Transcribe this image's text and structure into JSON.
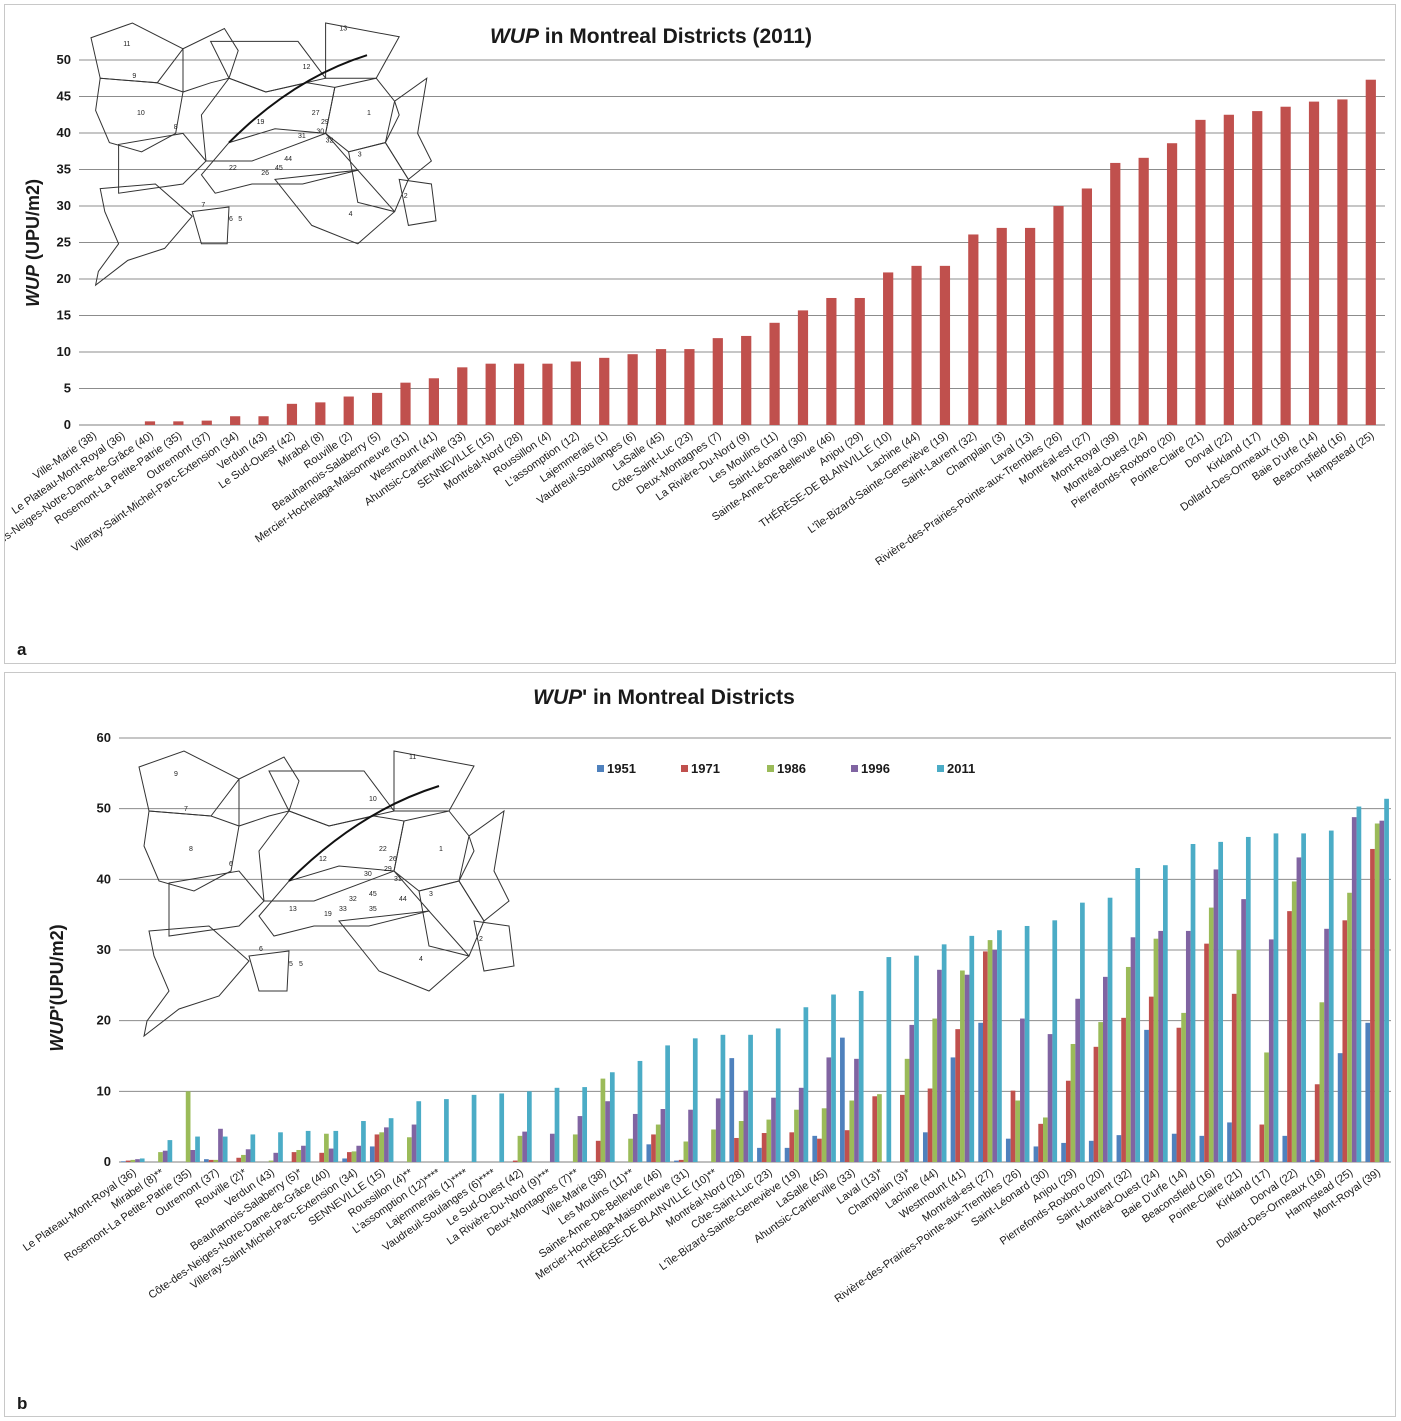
{
  "chart_data": [
    {
      "type": "bar",
      "panel_label": "a",
      "title_italic": "WUP",
      "title_rest": " in Montreal Districts (2011)",
      "ylabel_italic": "WUP",
      "ylabel_rest": " (UPU/m2)",
      "ylim": [
        0,
        50
      ],
      "yticks": [
        0,
        5,
        10,
        15,
        20,
        25,
        30,
        35,
        40,
        45,
        50
      ],
      "grid": true,
      "color": "#c0504d",
      "categories": [
        "Ville-Marie (38)",
        "Le Plateau-Mont-Royal (36)",
        "Côte-des-Neiges-Notre-Dame-de-Grâce (40)",
        "Rosemont-La Petite-Patrie (35)",
        "Outremont (37)",
        "Villeray-Saint-Michel-Parc-Extension (34)",
        "Verdun (43)",
        "Le Sud-Ouest (42)",
        "Mirabel (8)",
        "Rouville (2)",
        "Beauharnois-Salaberry (5)",
        "Mercier-Hochelaga-Maisonneuve (31)",
        "Westmount (41)",
        "Ahuntsic-Cartierville (33)",
        "SENNEVILLE (15)",
        "Montréal-Nord (28)",
        "Roussillon (4)",
        "L'assomption (12)",
        "Lajemmerais (1)",
        "Vaudreuil-Soulanges (6)",
        "LaSalle (45)",
        "Côte-Saint-Luc (23)",
        "Deux-Montagnes (7)",
        "La Rivière-Du-Nord (9)",
        "Les Moulins (11)",
        "Saint-Léonard (30)",
        "Sainte-Anne-De-Bellevue (46)",
        "Anjou (29)",
        "THÉRÈSE-DE BLAINVILLE (10)",
        "Lachine (44)",
        "L'île-Bizard-Sainte-Geneviève (19)",
        "Saint-Laurent (32)",
        "Champlain (3)",
        "Laval (13)",
        "Rivière-des-Prairies-Pointe-aux-Trembles (26)",
        "Montréal-est (27)",
        "Mont-Royal (39)",
        "Montréal-Ouest (24)",
        "Pierrefonds-Roxboro (20)",
        "Pointe-Claire (21)",
        "Dorval (22)",
        "Kirkland (17)",
        "Dollard-Des-Ormeaux (18)",
        "Baie D'urfe (14)",
        "Beaconsfield (16)",
        "Hampstead (25)"
      ],
      "values": [
        0,
        0,
        0.5,
        0.5,
        0.6,
        1.2,
        1.2,
        2.9,
        3.1,
        3.9,
        4.4,
        5.8,
        6.4,
        7.9,
        8.4,
        8.4,
        8.4,
        8.7,
        9.2,
        9.7,
        10.4,
        10.4,
        11.9,
        12.2,
        14.0,
        15.7,
        17.4,
        17.4,
        20.9,
        21.8,
        21.8,
        26.1,
        27.0,
        27.0,
        30.0,
        32.4,
        35.9,
        36.6,
        38.6,
        41.8,
        42.5,
        43.0,
        43.6,
        44.3,
        44.6,
        47.3
      ]
    },
    {
      "type": "bar",
      "panel_label": "b",
      "title_italic": "WUP",
      "title_rest": "' in Montreal Districts",
      "ylabel_italic": "WUP",
      "ylabel_rest": "'(UPU/m2)",
      "ylim": [
        0,
        60
      ],
      "yticks": [
        0,
        10,
        20,
        30,
        40,
        50,
        60
      ],
      "grid": true,
      "legend_position": "top",
      "categories": [
        "Le Plateau-Mont-Royal (36)",
        "Mirabel (8)**",
        "Rosemont-La Petite-Patrie (35)",
        "Outremont (37)",
        "Rouville (2)*",
        "Verdun (43)",
        "Beauharnois-Salaberry (5)*",
        "Côte-des-Neiges-Notre-Dame-de-Grâce (40)",
        "Villeray-Saint-Michel-Parc-Extension (34)",
        "SENNEVILLE (15)",
        "Roussillon (4)**",
        "L'assomption (12)****",
        "Lajemmerais (1)****",
        "Vaudreuil-Soulanges (6)****",
        "Le Sud-Ouest (42)",
        "La Rivière-Du-Nord (9)***",
        "Deux-Montagnes (7)**",
        "Ville-Marie (38)",
        "Les Moulins (11)**",
        "Sainte-Anne-De-Bellevue (46)",
        "Mercier-Hochelaga-Maisonneuve (31)",
        "THÉRÈSE-DE BLAINVILLE (10)**",
        "Montréal-Nord (28)",
        "Côte-Saint-Luc (23)",
        "L'île-Bizard-Sainte-Geneviève (19)",
        "LaSalle (45)",
        "Ahuntsic-Cartierville (33)",
        "Laval (13)*",
        "Champlain (3)*",
        "Lachine (44)",
        "Westmount (41)",
        "Montréal-est (27)",
        "Rivière-des-Prairies-Pointe-aux-Trembles (26)",
        "Saint-Léonard (30)",
        "Anjou (29)",
        "Pierrefonds-Roxboro (20)",
        "Saint-Laurent (32)",
        "Montréal-Ouest (24)",
        "Baie D'urfe (14)",
        "Beaconsfield (16)",
        "Pointe-Claire (21)",
        "Kirkland (17)",
        "Dorval (22)",
        "Dollard-Des-Ormeaux (18)",
        "Hampstead (25)",
        "Mont-Royal (39)"
      ],
      "series": [
        {
          "name": "1951",
          "color": "#4f81bd",
          "values": [
            0.1,
            0,
            0,
            0.4,
            0,
            0,
            0,
            0,
            0.5,
            2.2,
            0,
            0,
            0,
            0,
            0,
            0,
            0,
            0,
            0,
            2.5,
            0.2,
            0,
            14.7,
            2.0,
            2.0,
            3.7,
            17.6,
            0,
            0,
            4.2,
            14.8,
            19.7,
            3.3,
            2.2,
            2.7,
            3.0,
            3.8,
            18.7,
            4.0,
            3.7,
            5.6,
            0,
            3.7,
            0.3,
            15.4,
            19.7
          ]
        },
        {
          "name": "1971",
          "color": "#c0504d",
          "values": [
            0.2,
            0,
            0,
            0.3,
            0.6,
            0,
            1.4,
            1.3,
            1.4,
            3.9,
            0,
            0,
            0,
            0,
            0.2,
            0,
            0,
            3.0,
            0,
            3.9,
            0.3,
            0,
            3.4,
            4.1,
            4.2,
            3.3,
            4.5,
            9.3,
            9.5,
            10.4,
            18.8,
            29.8,
            10.1,
            5.4,
            11.5,
            16.3,
            20.4,
            23.4,
            19.0,
            30.9,
            23.8,
            5.3,
            35.5,
            11.0,
            34.2,
            44.3
          ]
        },
        {
          "name": "1986",
          "color": "#9bbb59",
          "values": [
            0.3,
            1.4,
            10.0,
            0.3,
            1.0,
            0.2,
            1.7,
            4.0,
            1.5,
            4.2,
            3.5,
            0,
            0,
            0,
            3.7,
            0,
            3.9,
            11.8,
            3.3,
            5.3,
            2.9,
            4.6,
            5.8,
            6.0,
            7.4,
            7.6,
            8.7,
            9.6,
            14.6,
            20.3,
            27.1,
            31.4,
            8.7,
            6.3,
            16.7,
            19.8,
            27.6,
            31.6,
            21.1,
            36.0,
            30.0,
            15.5,
            39.7,
            22.6,
            38.1,
            47.9
          ]
        },
        {
          "name": "1996",
          "color": "#8064a2",
          "values": [
            0.4,
            1.6,
            1.7,
            4.7,
            1.8,
            1.3,
            2.3,
            1.9,
            2.3,
            4.9,
            5.3,
            0,
            0,
            0,
            4.3,
            4.0,
            6.5,
            8.6,
            6.8,
            7.5,
            7.4,
            9.0,
            10.1,
            9.1,
            10.5,
            14.8,
            14.6,
            0,
            19.4,
            27.2,
            26.5,
            30.0,
            20.3,
            18.1,
            23.1,
            26.2,
            31.8,
            32.7,
            32.7,
            41.4,
            37.2,
            31.5,
            43.1,
            33.0,
            48.8,
            48.3
          ]
        },
        {
          "name": "2011",
          "color": "#4bacc6",
          "values": [
            0.5,
            3.1,
            3.6,
            3.6,
            3.9,
            4.2,
            4.4,
            4.4,
            5.8,
            6.2,
            8.6,
            8.9,
            9.5,
            9.7,
            10.0,
            10.5,
            10.6,
            12.7,
            14.3,
            16.5,
            17.5,
            18.0,
            18.0,
            18.9,
            21.9,
            23.7,
            24.2,
            29.0,
            29.2,
            30.8,
            32.0,
            32.8,
            33.4,
            34.2,
            36.7,
            37.4,
            41.6,
            42.0,
            45.0,
            45.3,
            46.0,
            46.5,
            46.5,
            46.9,
            50.3,
            51.4
          ]
        }
      ]
    }
  ],
  "maps": {
    "a_labels": [
      "1",
      "2",
      "3",
      "4",
      "5",
      "6",
      "7",
      "8",
      "9",
      "10",
      "11",
      "12",
      "13",
      "19",
      "22",
      "26",
      "27",
      "29",
      "30",
      "31",
      "32",
      "44",
      "45"
    ],
    "b_labels": [
      "1",
      "2",
      "3",
      "4",
      "5",
      "5",
      "6",
      "6",
      "7",
      "8",
      "9",
      "10",
      "11",
      "12",
      "13",
      "19",
      "22",
      "26",
      "29",
      "30",
      "31",
      "32",
      "33",
      "35",
      "44",
      "45"
    ]
  }
}
